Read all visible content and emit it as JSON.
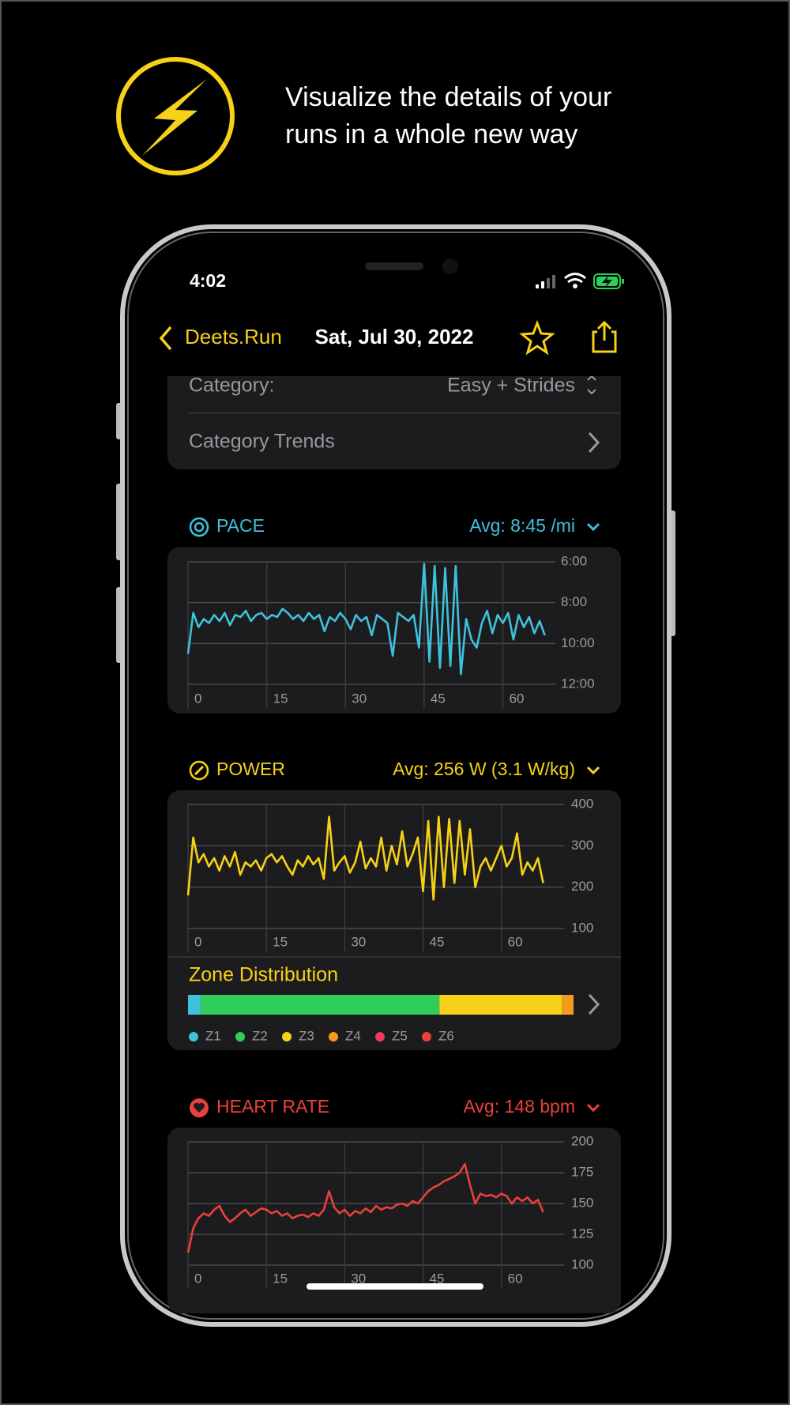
{
  "header": {
    "headline": [
      "Visualize the details of your",
      "runs in a whole new way"
    ]
  },
  "status": {
    "time": "4:02"
  },
  "nav": {
    "back": "Deets.Run",
    "title": "Sat, Jul 30, 2022"
  },
  "settings": {
    "rows": [
      {
        "label": "Category:",
        "value": "Easy + Strides"
      },
      {
        "label": "Category Trends"
      }
    ]
  },
  "chart_data": [
    {
      "type": "line",
      "title": "PACE",
      "subtitle": "Avg: 8:45 /mi",
      "color": "#3fc1dc",
      "x": [
        0,
        1,
        2,
        3,
        4,
        5,
        6,
        7,
        8,
        9,
        10,
        11,
        12,
        13,
        14,
        15,
        16,
        17,
        18,
        19,
        20,
        21,
        22,
        23,
        24,
        25,
        26,
        27,
        28,
        29,
        30,
        31,
        32,
        33,
        34,
        35,
        36,
        37,
        38,
        39,
        40,
        41,
        42,
        43,
        44,
        45,
        46,
        47,
        48,
        49,
        50,
        51,
        52,
        53,
        54,
        55,
        56,
        57,
        58,
        59,
        60,
        61,
        62,
        63,
        64,
        65,
        66,
        67,
        68
      ],
      "values": [
        10.5,
        8.5,
        9.2,
        8.8,
        9.0,
        8.6,
        8.9,
        8.5,
        9.1,
        8.6,
        8.7,
        8.4,
        8.9,
        8.6,
        8.5,
        8.8,
        8.6,
        8.7,
        8.3,
        8.5,
        8.8,
        8.6,
        8.9,
        8.5,
        8.8,
        8.6,
        9.4,
        8.7,
        8.9,
        8.5,
        8.8,
        9.3,
        8.6,
        8.9,
        8.7,
        9.6,
        8.6,
        8.8,
        9.0,
        10.6,
        8.5,
        8.7,
        8.9,
        8.6,
        10.2,
        6.1,
        10.9,
        6.2,
        11.2,
        6.3,
        11.1,
        6.2,
        11.5,
        8.8,
        9.8,
        10.2,
        9.0,
        8.4,
        9.5,
        8.6,
        9.0,
        8.5,
        9.8,
        8.6,
        9.2,
        8.7,
        9.5,
        8.9,
        9.6
      ],
      "xlim": [
        0,
        70
      ],
      "xticks": [
        0,
        15,
        30,
        45,
        60
      ],
      "ylim": [
        12,
        6
      ],
      "yticks": [
        {
          "value": 6,
          "label": "6:00"
        },
        {
          "value": 8,
          "label": "8:00"
        },
        {
          "value": 10,
          "label": "10:00"
        },
        {
          "value": 12,
          "label": "12:00"
        }
      ],
      "grid": true
    },
    {
      "type": "line",
      "title": "POWER",
      "subtitle": "Avg: 256 W (3.1 W/kg)",
      "color": "#f6d117",
      "x": [
        0,
        1,
        2,
        3,
        4,
        5,
        6,
        7,
        8,
        9,
        10,
        11,
        12,
        13,
        14,
        15,
        16,
        17,
        18,
        19,
        20,
        21,
        22,
        23,
        24,
        25,
        26,
        27,
        28,
        29,
        30,
        31,
        32,
        33,
        34,
        35,
        36,
        37,
        38,
        39,
        40,
        41,
        42,
        43,
        44,
        45,
        46,
        47,
        48,
        49,
        50,
        51,
        52,
        53,
        54,
        55,
        56,
        57,
        58,
        59,
        60,
        61,
        62,
        63,
        64,
        65,
        66,
        67,
        68
      ],
      "values": [
        180,
        320,
        260,
        280,
        250,
        270,
        240,
        275,
        250,
        285,
        230,
        260,
        250,
        265,
        240,
        270,
        280,
        260,
        275,
        250,
        230,
        265,
        250,
        275,
        255,
        270,
        220,
        370,
        240,
        260,
        275,
        235,
        260,
        310,
        245,
        270,
        250,
        320,
        240,
        300,
        255,
        335,
        250,
        280,
        320,
        190,
        360,
        170,
        370,
        200,
        365,
        210,
        360,
        230,
        340,
        200,
        250,
        270,
        240,
        270,
        300,
        250,
        270,
        330,
        230,
        260,
        240,
        270,
        210
      ],
      "xlim": [
        0,
        72
      ],
      "xticks": [
        0,
        15,
        30,
        45,
        60
      ],
      "ylim": [
        100,
        400
      ],
      "yticks": [
        100,
        200,
        300,
        400
      ],
      "grid": true
    },
    {
      "type": "stacked_bar",
      "title": "Zone Distribution",
      "categories": [
        "Z1",
        "Z2",
        "Z3",
        "Z4",
        "Z5",
        "Z6"
      ],
      "values": [
        3.3,
        61.9,
        31.8,
        3.0,
        0,
        0
      ],
      "colors": [
        "#3fc1dc",
        "#2fce5a",
        "#f6d117",
        "#f59a1b",
        "#ef3a5d",
        "#e8413a"
      ]
    },
    {
      "type": "line",
      "title": "HEART RATE",
      "subtitle": "Avg: 148 bpm",
      "color": "#e8413a",
      "x": [
        0,
        1,
        2,
        3,
        4,
        5,
        6,
        7,
        8,
        9,
        10,
        11,
        12,
        13,
        14,
        15,
        16,
        17,
        18,
        19,
        20,
        21,
        22,
        23,
        24,
        25,
        26,
        27,
        28,
        29,
        30,
        31,
        32,
        33,
        34,
        35,
        36,
        37,
        38,
        39,
        40,
        41,
        42,
        43,
        44,
        45,
        46,
        47,
        48,
        49,
        50,
        51,
        52,
        53,
        54,
        55,
        56,
        57,
        58,
        59,
        60,
        61,
        62,
        63,
        64,
        65,
        66,
        67,
        68
      ],
      "values": [
        110,
        130,
        138,
        142,
        140,
        145,
        148,
        140,
        135,
        138,
        142,
        145,
        140,
        143,
        146,
        145,
        142,
        144,
        140,
        142,
        138,
        140,
        141,
        139,
        142,
        140,
        145,
        160,
        147,
        142,
        145,
        140,
        144,
        142,
        146,
        143,
        148,
        145,
        147,
        146,
        149,
        150,
        148,
        152,
        150,
        155,
        160,
        163,
        165,
        168,
        170,
        172,
        175,
        182,
        165,
        150,
        158,
        156,
        157,
        155,
        158,
        156,
        150,
        155,
        152,
        155,
        150,
        153,
        143
      ],
      "xlim": [
        0,
        72
      ],
      "xticks": [
        0,
        15,
        30,
        45,
        60
      ],
      "ylim": [
        100,
        200
      ],
      "yticks": [
        100,
        125,
        150,
        175,
        200
      ],
      "grid": true
    }
  ]
}
